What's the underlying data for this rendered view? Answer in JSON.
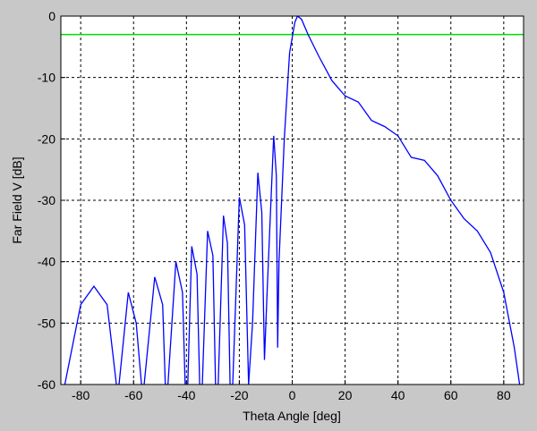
{
  "chart_data": {
    "type": "line",
    "xlabel": "Theta Angle [deg]",
    "ylabel": "Far Field V [dB]",
    "xlim": [
      -87.5,
      87.5
    ],
    "ylim": [
      -60,
      0
    ],
    "xticks": [
      -80,
      -60,
      -40,
      -20,
      0,
      20,
      40,
      60,
      80
    ],
    "yticks": [
      -60,
      -50,
      -40,
      -30,
      -20,
      -10,
      0
    ],
    "grid": true,
    "reference_line": {
      "value": -3,
      "color": "#00dd00"
    },
    "series": [
      {
        "color": "#0000ff",
        "x": [
          -86,
          -80,
          -75,
          -70,
          -66.5,
          -65.5,
          -62,
          -59,
          -57,
          -56,
          -52,
          -49,
          -48,
          -47,
          -44,
          -41.5,
          -40.5,
          -39.5,
          -38,
          -36,
          -35,
          -34,
          -32,
          -30,
          -29,
          -28,
          -26,
          -24.5,
          -23.5,
          -22.5,
          -20,
          -18,
          -16.5,
          -15,
          -13,
          -11.5,
          -10.5,
          -9.5,
          -7,
          -6,
          -5.5,
          -5,
          -3,
          -1,
          1,
          2,
          3.5,
          6,
          10,
          15,
          20,
          25,
          30,
          35,
          40,
          45,
          50,
          55,
          60,
          65,
          70,
          75,
          80,
          84,
          86
        ],
        "values": [
          -60,
          -47,
          -44,
          -47,
          -60,
          -60,
          -45,
          -50,
          -60,
          -60,
          -42.5,
          -47,
          -60,
          -60,
          -40,
          -45,
          -60,
          -60,
          -37.5,
          -42,
          -60,
          -60,
          -35,
          -39,
          -60,
          -60,
          -32.5,
          -37,
          -60,
          -60,
          -29.5,
          -34,
          -60,
          -50,
          -25.5,
          -32,
          -56,
          -45,
          -19.5,
          -26,
          -54,
          -40,
          -20,
          -6,
          -1,
          0,
          -0.5,
          -3,
          -6.5,
          -10.5,
          -13,
          -14,
          -17,
          -18,
          -19.5,
          -23,
          -23.5,
          -26,
          -30,
          -33,
          -35,
          -38.5,
          -45,
          -54,
          -60
        ]
      }
    ]
  }
}
